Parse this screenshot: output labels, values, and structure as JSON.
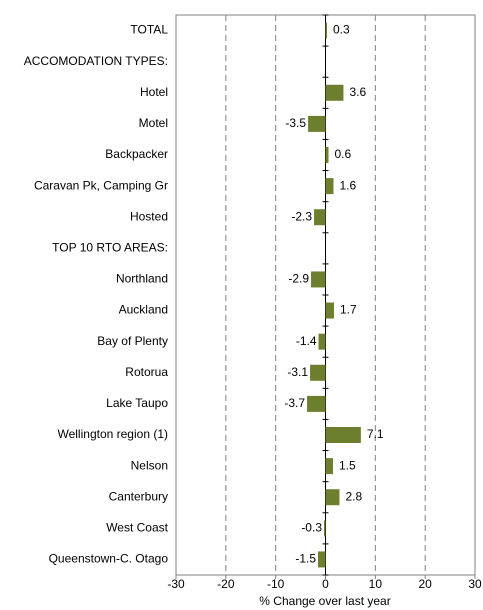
{
  "chart_data": {
    "type": "barh",
    "xlabel": "% Change over last year",
    "categories": [
      "TOTAL",
      "ACCOMODATION TYPES:",
      "Hotel",
      "Motel",
      "Backpacker",
      "Caravan Pk, Camping Gr",
      "Hosted",
      "TOP 10 RTO AREAS:",
      "Northland",
      "Auckland",
      "Bay of Plenty",
      "Rotorua",
      "Lake Taupo",
      "Wellington region (1)",
      "Nelson",
      "Canterbury",
      "West Coast",
      "Queenstown-C. Otago"
    ],
    "values": [
      0.3,
      null,
      3.6,
      -3.5,
      0.6,
      1.6,
      -2.3,
      null,
      -2.9,
      1.7,
      -1.4,
      -3.1,
      -3.7,
      7.1,
      1.5,
      2.8,
      -0.3,
      -1.5
    ],
    "color": "#6b7f2f",
    "xlim": [
      -30,
      30
    ],
    "xticks": [
      -30,
      -20,
      -10,
      0,
      10,
      20,
      30
    ],
    "grid": true
  }
}
